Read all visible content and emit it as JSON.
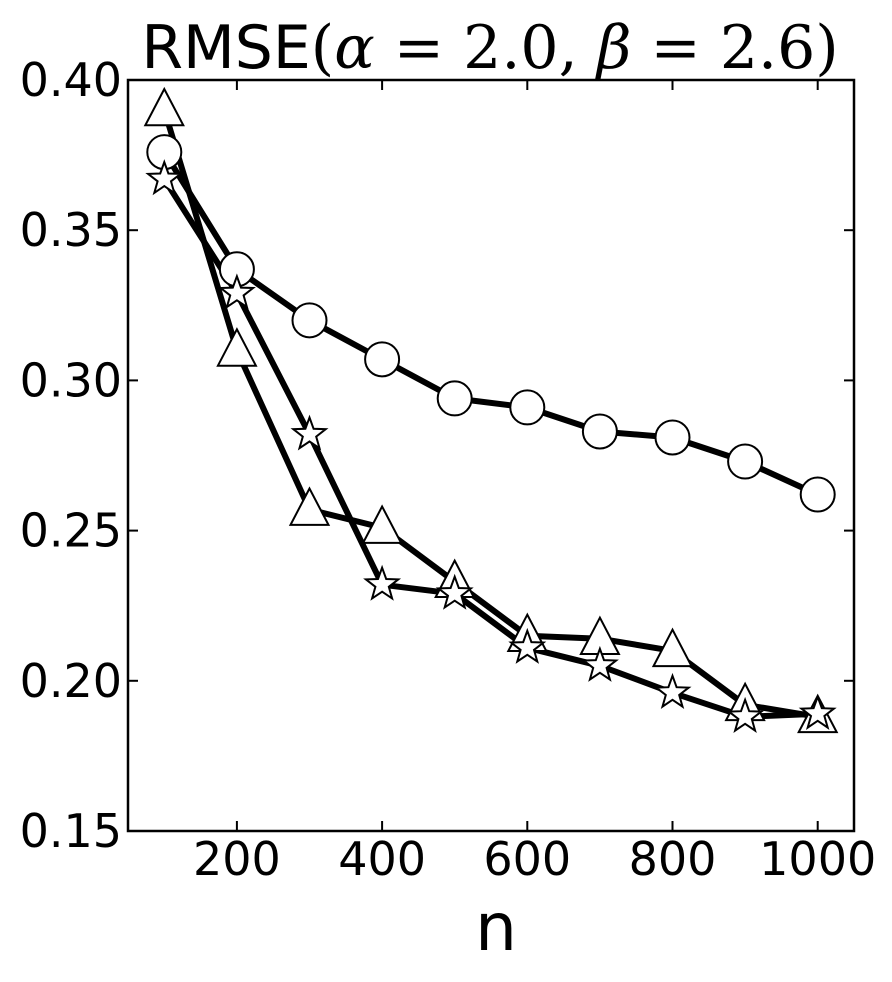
{
  "chart_data": {
    "type": "line",
    "title": {
      "prefix": "RMSE",
      "open": "(",
      "alpha_symbol": "α",
      "alpha_value": "2.0",
      "beta_symbol": "β",
      "beta_value": "2.6",
      "close": ")"
    },
    "xlabel": "n",
    "ylabel": "",
    "xlim": [
      50,
      1050
    ],
    "ylim": [
      0.15,
      0.4
    ],
    "x": [
      100,
      200,
      300,
      400,
      500,
      600,
      700,
      800,
      900,
      1000
    ],
    "xticks": [
      200,
      400,
      600,
      800,
      1000
    ],
    "xtick_labels": [
      "200",
      "400",
      "600",
      "800",
      "1000"
    ],
    "yticks": [
      0.15,
      0.2,
      0.25,
      0.3,
      0.35,
      0.4
    ],
    "ytick_labels": [
      "0.15",
      "0.20",
      "0.25",
      "0.30",
      "0.35",
      "0.40"
    ],
    "grid": false,
    "legend": "none",
    "series": [
      {
        "marker": "circle",
        "values": [
          0.376,
          0.337,
          0.32,
          0.307,
          0.294,
          0.291,
          0.283,
          0.281,
          0.273,
          0.262
        ]
      },
      {
        "marker": "triangle",
        "values": [
          0.39,
          0.31,
          0.257,
          0.251,
          0.233,
          0.215,
          0.214,
          0.21,
          0.192,
          0.188
        ]
      },
      {
        "marker": "star",
        "values": [
          0.367,
          0.329,
          0.282,
          0.232,
          0.229,
          0.211,
          0.205,
          0.196,
          0.188,
          0.189
        ]
      }
    ]
  }
}
